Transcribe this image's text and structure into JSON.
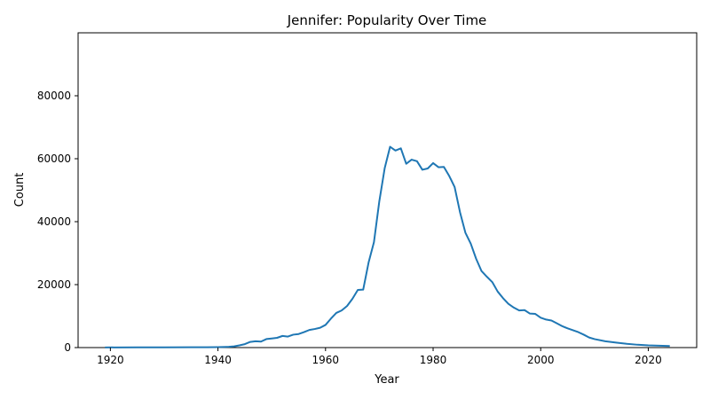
{
  "chart_data": {
    "type": "line",
    "title": "Jennifer: Popularity Over Time",
    "xlabel": "Year",
    "ylabel": "Count",
    "xlim": [
      1914,
      2029
    ],
    "ylim": [
      0,
      100000
    ],
    "x_ticks": [
      1920,
      1940,
      1960,
      1980,
      2000,
      2020
    ],
    "y_ticks": [
      0,
      20000,
      40000,
      60000,
      80000
    ],
    "grid": false,
    "line_color": "#1f77b4",
    "series": [
      {
        "x": [
          1919,
          1925,
          1930,
          1935,
          1938,
          1940,
          1942,
          1943,
          1944,
          1945,
          1946,
          1947,
          1948,
          1949,
          1950,
          1951,
          1952,
          1953,
          1954,
          1955,
          1956,
          1957,
          1958,
          1959,
          1960,
          1961,
          1962,
          1963,
          1964,
          1965,
          1966,
          1967,
          1968,
          1969,
          1970,
          1971,
          1972,
          1973,
          1974,
          1975,
          1976,
          1977,
          1978,
          1979,
          1980,
          1981,
          1982,
          1983,
          1984,
          1985,
          1986,
          1987,
          1988,
          1989,
          1990,
          1991,
          1992,
          1993,
          1994,
          1995,
          1996,
          1997,
          1998,
          1999,
          2000,
          2001,
          2002,
          2003,
          2004,
          2005,
          2006,
          2007,
          2008,
          2009,
          2010,
          2012,
          2014,
          2016,
          2018,
          2020,
          2022,
          2024
        ],
        "y": [
          50,
          60,
          80,
          100,
          120,
          150,
          250,
          400,
          700,
          1100,
          1800,
          2000,
          1900,
          2700,
          2900,
          3100,
          3700,
          3500,
          4100,
          4300,
          4900,
          5600,
          5900,
          6300,
          7200,
          9200,
          11000,
          11800,
          13200,
          15500,
          18300,
          18400,
          27000,
          33500,
          46500,
          57000,
          63800,
          62600,
          63300,
          58400,
          59700,
          59200,
          56500,
          56900,
          58600,
          57300,
          57400,
          54500,
          51000,
          43000,
          36500,
          33000,
          28200,
          24300,
          22500,
          20800,
          17800,
          15700,
          13900,
          12700,
          11800,
          11900,
          10800,
          10700,
          9500,
          8900,
          8600,
          7700,
          6800,
          6100,
          5500,
          4900,
          4100,
          3200,
          2700,
          2000,
          1600,
          1200,
          900,
          700,
          600,
          500
        ]
      }
    ]
  }
}
